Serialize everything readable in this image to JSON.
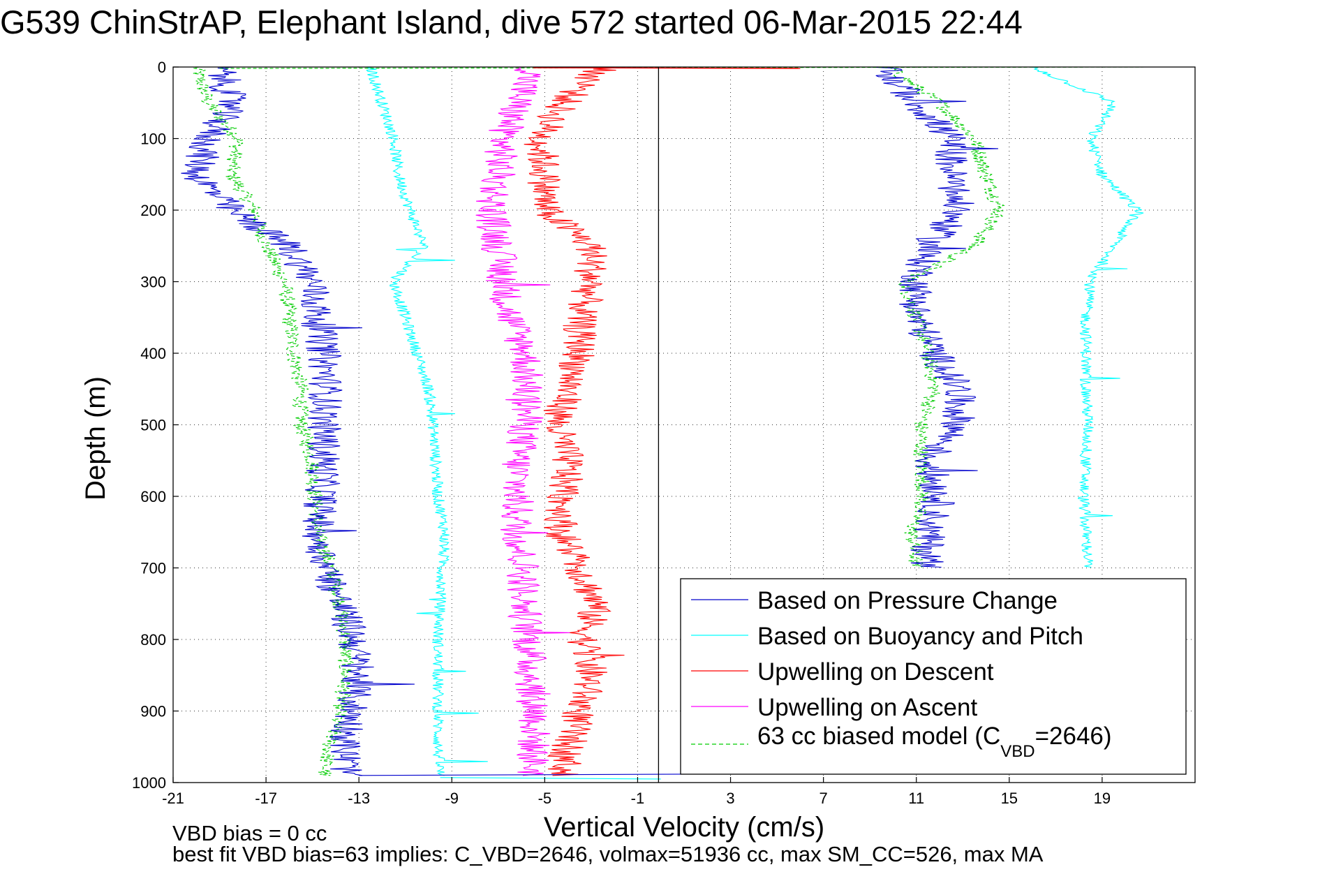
{
  "chart_data": {
    "type": "line",
    "title": "G539 ChinStrAP, Elephant Island, dive 572 started 06-Mar-2015 22:44",
    "xlabel": "Vertical Velocity (cm/s)",
    "ylabel": "Depth (m)",
    "xlim": [
      -21,
      23
    ],
    "ylim": [
      0,
      1000
    ],
    "y_reversed": true,
    "grid": true,
    "legend_position": "bottom-right",
    "x_ticks": [
      -21,
      -17,
      -13,
      -9,
      -5,
      -1,
      3,
      7,
      11,
      15,
      19
    ],
    "y_ticks": [
      0,
      100,
      200,
      300,
      400,
      500,
      600,
      700,
      800,
      900,
      1000
    ],
    "x_tick_labels": [
      "-21",
      "-17",
      "-13",
      "-9",
      "-5",
      "-1",
      "3",
      "7",
      "11",
      "15",
      "19"
    ],
    "y_tick_labels": [
      "0",
      "100",
      "200",
      "300",
      "400",
      "500",
      "600",
      "700",
      "800",
      "900",
      "1000"
    ],
    "reference_line_x": -0.1,
    "depth": [
      0,
      50,
      100,
      150,
      200,
      250,
      300,
      350,
      400,
      450,
      500,
      550,
      600,
      650,
      700,
      750,
      800,
      850,
      900,
      950,
      990
    ],
    "series": [
      {
        "name": "Based on Pressure Change",
        "color": "#0000cc",
        "style": "solid",
        "descent_x": [
          -19,
          -18.5,
          -19.5,
          -20,
          -18.5,
          -16,
          -15,
          -14.8,
          -14.5,
          -14.4,
          -14.5,
          -14.5,
          -14.6,
          -14.8,
          -14.4,
          -13.8,
          -13.2,
          -13.1,
          -13.3,
          -13.6,
          -13.5
        ],
        "ascent_x": [
          9.5,
          11,
          12.5,
          12.5,
          12.8,
          11.5,
          11,
          11,
          11.8,
          12.8,
          12.8,
          11.5,
          12,
          11.5,
          11.5
        ]
      },
      {
        "name": "Based on Buoyancy and Pitch",
        "color": "#00ffff",
        "style": "solid",
        "descent_x": [
          -12.5,
          -12,
          -11.5,
          -11.3,
          -10.8,
          -10.2,
          -11.5,
          -11.0,
          -10.5,
          -10.0,
          -9.8,
          -9.7,
          -9.6,
          -9.3,
          -9.4,
          -9.5,
          -9.6,
          -9.6,
          -9.6,
          -9.6,
          -9.5
        ],
        "ascent_x": [
          16,
          19.5,
          18.5,
          19,
          20.5,
          19.5,
          18.5,
          18.3,
          18.3,
          18.3,
          18.4,
          18.3,
          18.2,
          18.3,
          18.4
        ]
      },
      {
        "name": "Upwelling on Descent",
        "color": "#ff0000",
        "style": "solid",
        "x": [
          -2.5,
          -4.2,
          -5.2,
          -5.0,
          -5.0,
          -3.0,
          -3.0,
          -3.5,
          -3.5,
          -4.0,
          -4.5,
          -4.0,
          -4.2,
          -4.3,
          -3.5,
          -2.8,
          -3.3,
          -3.0,
          -3.5,
          -4.0,
          -4.2
        ]
      },
      {
        "name": "Upwelling on Ascent",
        "color": "#ff00ff",
        "style": "solid",
        "x": [
          -5.5,
          -6.2,
          -6.8,
          -7.0,
          -7.3,
          -7.0,
          -6.8,
          -6.5,
          -5.8,
          -5.8,
          -5.8,
          -6.2,
          -6.2,
          -6.2,
          -5.9,
          -5.9,
          -5.7,
          -5.6,
          -5.4,
          -5.5,
          -5.5
        ]
      },
      {
        "name": "63 cc biased model (C_VBD=2646)",
        "color": "#00cc00",
        "style": "dashed",
        "descent_x": [
          -20,
          -19.5,
          -18.2,
          -18.5,
          -17.5,
          -17.0,
          -16.2,
          -16.0,
          -15.8,
          -15.5,
          -15.5,
          -15.0,
          -14.9,
          -14.8,
          -14.2,
          -13.8,
          -13.6,
          -13.6,
          -13.8,
          -14.3,
          -14.5
        ],
        "ascent_x": [
          9.8,
          12.0,
          13.5,
          14.0,
          14.6,
          13.5,
          10.5,
          11.0,
          11.5,
          11.8,
          11.2,
          11.2,
          11.3,
          10.8,
          11.0
        ]
      }
    ],
    "ascent_depth": [
      0,
      50,
      100,
      150,
      200,
      250,
      300,
      350,
      400,
      450,
      500,
      550,
      600,
      650,
      700
    ],
    "legend": [
      {
        "label": "Based on Pressure Change"
      },
      {
        "label": "Based on Buoyancy and Pitch"
      },
      {
        "label": "Upwelling on Descent"
      },
      {
        "label": "Upwelling on Ascent"
      },
      {
        "label_main": "63 cc biased model (C",
        "label_sub": "VBD",
        "label_end": "=2646)"
      }
    ]
  },
  "notes": {
    "line1": "VBD bias = 0 cc",
    "line2": "best fit VBD bias=63 implies: C_VBD=2646, volmax=51936 cc, max SM_CC=526, max MA"
  },
  "colors": {
    "pressure": "#0000cc",
    "buoyancy": "#00ffff",
    "descent": "#ff0000",
    "ascent": "#ff00ff",
    "model": "#00cc00"
  }
}
